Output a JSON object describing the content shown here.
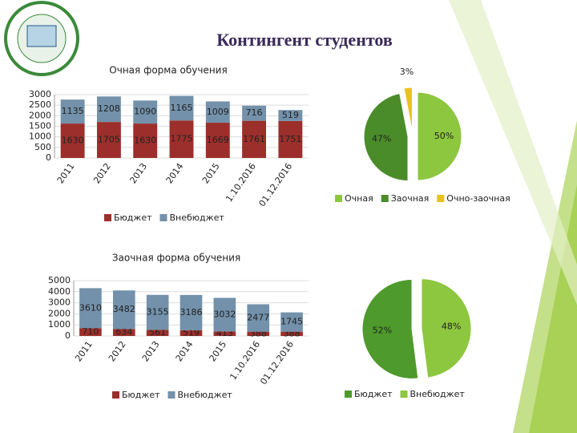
{
  "title": "Контингент студентов",
  "chart_data": [
    {
      "type": "bar",
      "stacked": true,
      "title": "Очная форма обучения",
      "categories": [
        "2011",
        "2012",
        "2013",
        "2014",
        "2015",
        "1.10.2016",
        "01.12.2016"
      ],
      "series": [
        {
          "name": "Бюджет",
          "color": "#9c2f2b",
          "values": [
            1630,
            1705,
            1630,
            1775,
            1669,
            1761,
            1751
          ]
        },
        {
          "name": "Внебюджет",
          "color": "#7391aa",
          "values": [
            1135,
            1208,
            1090,
            1165,
            1009,
            716,
            519
          ]
        }
      ],
      "ylim": [
        0,
        3000
      ],
      "yticks": [
        0,
        500,
        1000,
        1500,
        2000,
        2500,
        3000
      ],
      "grid": true
    },
    {
      "type": "pie",
      "categories": [
        "Очная",
        "Заочная",
        "Очно-заочная"
      ],
      "values": [
        50,
        47,
        3
      ],
      "value_labels": [
        "50%",
        "47%",
        "3%"
      ],
      "colors": [
        "#8dc63f",
        "#4a8c2a",
        "#e8c21e"
      ]
    },
    {
      "type": "bar",
      "stacked": true,
      "title": "Заочная форма обучения",
      "categories": [
        "2011",
        "2012",
        "2013",
        "2014",
        "2015",
        "1.10.2016",
        "01.12.2016"
      ],
      "series": [
        {
          "name": "Бюджет",
          "color": "#9c2f2b",
          "values": [
            710,
            634,
            561,
            519,
            413,
            388,
            388
          ]
        },
        {
          "name": "Внебюджет",
          "color": "#7391aa",
          "values": [
            3610,
            3482,
            3155,
            3186,
            3032,
            2477,
            1745
          ]
        }
      ],
      "ylim": [
        0,
        5000
      ],
      "yticks": [
        0,
        1000,
        2000,
        3000,
        4000,
        5000
      ],
      "grid": true
    },
    {
      "type": "pie",
      "categories": [
        "Бюджет",
        "Внебюджет"
      ],
      "values": [
        52,
        48
      ],
      "value_labels": [
        "52%",
        "48%"
      ],
      "colors": [
        "#4e9a2c",
        "#8dc63f"
      ]
    }
  ]
}
